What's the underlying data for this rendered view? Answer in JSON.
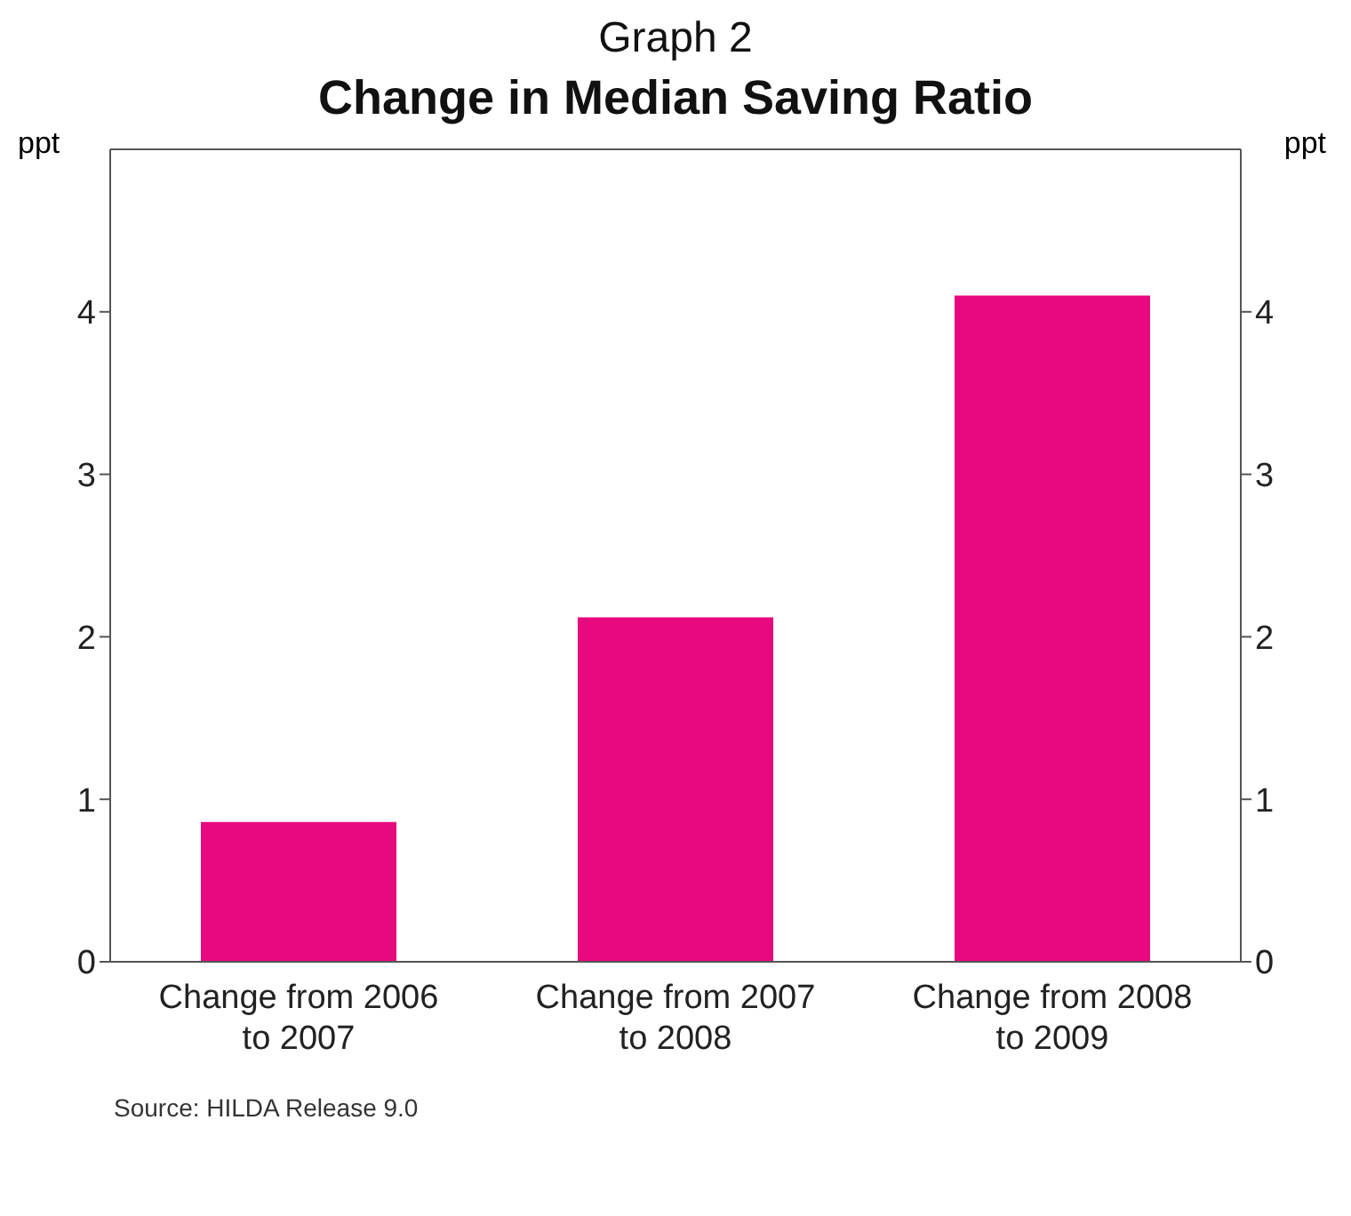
{
  "chart_data": {
    "type": "bar",
    "title": "Graph 2",
    "subtitle": "Change in Median Saving Ratio",
    "ylabel": "ppt",
    "y2label": "ppt",
    "categories": [
      "Change from 2006 to 2007",
      "Change from 2007 to 2008",
      "Change from 2008 to 2009"
    ],
    "values": [
      0.86,
      2.12,
      4.1
    ],
    "color": "#e8087f",
    "ylim": [
      0,
      5
    ],
    "yticks": [
      0,
      1,
      2,
      3,
      4
    ],
    "y2lim": [
      0,
      5
    ],
    "y2ticks": [
      0,
      1,
      2,
      3,
      4
    ],
    "grid": false,
    "annotations": [
      "Source: HILDA Release 9.0"
    ]
  }
}
